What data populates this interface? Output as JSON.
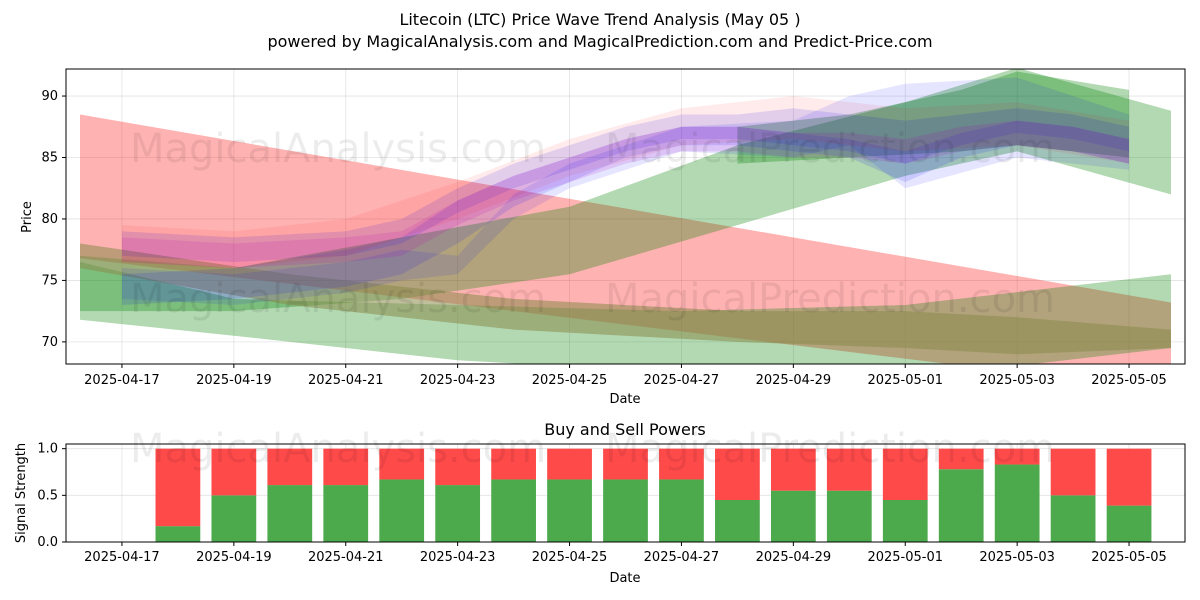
{
  "title": "Litecoin (LTC) Price Wave Trend Analysis (May 05 )",
  "subtitle": "powered by MagicalAnalysis.com and MagicalPrediction.com and Predict-Price.com",
  "watermarks": [
    "MagicalAnalysis.com",
    "MagicalPrediction.com"
  ],
  "colors": {
    "red": "#ff0000",
    "green": "#008000",
    "blue": "#0000ff",
    "magenta": "#c000c0",
    "buy": "#4caa4c",
    "sell": "#ff4a4a"
  },
  "chart_data": [
    {
      "type": "area",
      "name": "price-wave",
      "xlabel": "Date",
      "ylabel": "Price",
      "ylim": [
        68.2,
        92.2
      ],
      "xlim": [
        "2025-04-16",
        "2025-05-06"
      ],
      "xticks": [
        "2025-04-17",
        "2025-04-19",
        "2025-04-21",
        "2025-04-23",
        "2025-04-25",
        "2025-04-27",
        "2025-04-29",
        "2025-05-01",
        "2025-05-03",
        "2025-05-05"
      ],
      "yticks": [
        70,
        75,
        80,
        85,
        90
      ],
      "grid": true,
      "bands": [
        {
          "color": "red",
          "opacity": 0.3,
          "x": [
            "2025-04-16 06:00",
            "2025-05-05 18:00"
          ],
          "upper": [
            88.5,
            73.2
          ],
          "lower": [
            76.8,
            66.0
          ]
        },
        {
          "color": "green",
          "opacity": 0.3,
          "x": [
            "2025-04-16 06:00",
            "2025-04-19",
            "2025-04-22",
            "2025-04-25",
            "2025-04-28",
            "2025-05-01",
            "2025-05-03",
            "2025-05-05 18:00"
          ],
          "upper": [
            77.0,
            76.0,
            78.5,
            81.0,
            86.0,
            89.5,
            92.3,
            88.8
          ],
          "lower": [
            72.5,
            72.5,
            73.5,
            75.5,
            79.5,
            83.5,
            85.5,
            82.0
          ]
        },
        {
          "color": "green",
          "opacity": 0.3,
          "x": [
            "2025-04-16 06:00",
            "2025-04-19",
            "2025-04-23",
            "2025-04-27",
            "2025-05-01",
            "2025-05-05 18:00"
          ],
          "upper": [
            76.5,
            73.5,
            73.0,
            72.5,
            73.0,
            75.5
          ],
          "lower": [
            71.8,
            70.5,
            68.5,
            67.5,
            67.0,
            69.5
          ]
        },
        {
          "color": "olive",
          "opacity": 0.55,
          "x": [
            "2025-04-16 06:00",
            "2025-04-20",
            "2025-04-24",
            "2025-04-28",
            "2025-05-01",
            "2025-05-03",
            "2025-05-05 18:00"
          ],
          "upper": [
            78.0,
            75.5,
            73.5,
            72.5,
            72.5,
            72.0,
            71.0
          ],
          "lower": [
            76.0,
            73.0,
            71.0,
            70.0,
            69.5,
            69.0,
            69.5
          ]
        },
        {
          "color": "green",
          "opacity": 0.3,
          "x": [
            "2025-04-28",
            "2025-04-30",
            "2025-05-02",
            "2025-05-03",
            "2025-05-05"
          ],
          "upper": [
            87.5,
            88.5,
            90.5,
            92.0,
            90.5
          ],
          "lower": [
            84.5,
            85.0,
            85.5,
            86.0,
            85.0
          ]
        }
      ],
      "waves": [
        {
          "color": "blue",
          "opacity": 0.12,
          "x": [
            "2025-04-17",
            "2025-04-19",
            "2025-04-21",
            "2025-04-22",
            "2025-04-23",
            "2025-04-24",
            "2025-04-25",
            "2025-04-26",
            "2025-04-27",
            "2025-04-28",
            "2025-04-29",
            "2025-04-30",
            "2025-05-01",
            "2025-05-02",
            "2025-05-03",
            "2025-05-04",
            "2025-05-05"
          ],
          "upper": [
            75.5,
            76.0,
            77.5,
            78.5,
            81.5,
            83.5,
            85.0,
            86.5,
            87.5,
            87.5,
            87.0,
            86.5,
            85.5,
            87.0,
            88.0,
            87.5,
            86.5
          ],
          "lower": [
            73.0,
            73.5,
            74.5,
            75.5,
            78.0,
            81.0,
            83.0,
            85.0,
            86.0,
            86.0,
            85.5,
            85.0,
            83.0,
            85.0,
            86.0,
            85.5,
            84.5
          ]
        },
        {
          "color": "blue",
          "opacity": 0.12,
          "x": [
            "2025-04-17",
            "2025-04-19",
            "2025-04-21",
            "2025-04-22",
            "2025-04-23",
            "2025-04-24",
            "2025-04-25",
            "2025-04-26",
            "2025-04-27",
            "2025-04-28",
            "2025-04-29",
            "2025-04-30",
            "2025-05-01",
            "2025-05-02",
            "2025-05-03",
            "2025-05-04",
            "2025-05-05"
          ],
          "upper": [
            79.0,
            78.5,
            79.0,
            80.0,
            82.5,
            84.5,
            86.0,
            87.5,
            88.5,
            88.5,
            89.0,
            88.5,
            88.0,
            88.5,
            89.0,
            88.5,
            87.5
          ],
          "lower": [
            77.0,
            76.5,
            77.0,
            78.0,
            80.5,
            82.5,
            84.0,
            85.5,
            86.5,
            86.5,
            86.0,
            85.5,
            84.5,
            86.0,
            87.0,
            86.5,
            85.5
          ]
        },
        {
          "color": "magenta",
          "opacity": 0.14,
          "x": [
            "2025-04-17",
            "2025-04-19",
            "2025-04-21",
            "2025-04-22",
            "2025-04-23",
            "2025-04-24",
            "2025-04-25",
            "2025-04-26",
            "2025-04-27",
            "2025-04-28",
            "2025-04-29",
            "2025-04-30",
            "2025-05-01",
            "2025-05-02",
            "2025-05-03",
            "2025-05-04",
            "2025-05-05"
          ],
          "upper": [
            78.5,
            78.0,
            78.5,
            79.0,
            81.5,
            83.5,
            85.0,
            86.5,
            87.5,
            87.5,
            87.0,
            87.0,
            86.5,
            87.5,
            88.0,
            87.5,
            86.5
          ],
          "lower": [
            76.5,
            76.0,
            76.5,
            77.0,
            79.5,
            81.5,
            83.0,
            84.5,
            85.5,
            85.5,
            85.0,
            85.0,
            84.5,
            85.5,
            86.0,
            85.5,
            84.5
          ]
        },
        {
          "color": "red",
          "opacity": 0.08,
          "x": [
            "2025-04-17",
            "2025-04-19",
            "2025-04-21",
            "2025-04-23",
            "2025-04-25",
            "2025-04-27",
            "2025-04-29",
            "2025-05-01",
            "2025-05-03",
            "2025-05-05"
          ],
          "upper": [
            79.5,
            79.0,
            80.0,
            83.0,
            86.5,
            89.0,
            90.0,
            89.0,
            89.5,
            88.0
          ],
          "lower": [
            76.5,
            76.0,
            77.0,
            80.0,
            83.5,
            86.0,
            86.5,
            85.5,
            86.0,
            84.5
          ]
        },
        {
          "color": "blue",
          "opacity": 0.1,
          "x": [
            "2025-04-17",
            "2025-04-19",
            "2025-04-21",
            "2025-04-22",
            "2025-04-23",
            "2025-04-24",
            "2025-04-25",
            "2025-04-27",
            "2025-04-29",
            "2025-04-30",
            "2025-05-01",
            "2025-05-03",
            "2025-05-05"
          ],
          "upper": [
            76.0,
            75.5,
            76.5,
            77.5,
            77.0,
            82.0,
            84.5,
            87.5,
            88.0,
            90.0,
            91.0,
            91.5,
            88.5
          ],
          "lower": [
            73.5,
            73.0,
            74.0,
            75.0,
            75.5,
            80.0,
            82.5,
            85.5,
            85.0,
            86.0,
            82.5,
            85.0,
            84.0
          ]
        }
      ]
    },
    {
      "type": "bar",
      "name": "buy-sell-powers",
      "title": "Buy and Sell Powers",
      "xlabel": "Date",
      "ylabel": "Signal Strength",
      "ylim": [
        0,
        1.05
      ],
      "yticks": [
        "0.0",
        "0.5",
        "1.0"
      ],
      "xticks": [
        "2025-04-17",
        "2025-04-19",
        "2025-04-21",
        "2025-04-23",
        "2025-04-25",
        "2025-04-27",
        "2025-04-29",
        "2025-05-01",
        "2025-05-03",
        "2025-05-05"
      ],
      "dates": [
        "2025-04-18",
        "2025-04-19",
        "2025-04-20",
        "2025-04-21",
        "2025-04-22",
        "2025-04-23",
        "2025-04-24",
        "2025-04-25",
        "2025-04-26",
        "2025-04-27",
        "2025-04-28",
        "2025-04-29",
        "2025-04-30",
        "2025-05-01",
        "2025-05-02",
        "2025-05-03",
        "2025-05-04",
        "2025-05-05"
      ],
      "buy": [
        0.17,
        0.5,
        0.61,
        0.61,
        0.67,
        0.61,
        0.67,
        0.67,
        0.67,
        0.67,
        0.45,
        0.55,
        0.55,
        0.45,
        0.78,
        0.83,
        0.5,
        0.39
      ],
      "sell": [
        0.83,
        0.5,
        0.39,
        0.39,
        0.33,
        0.39,
        0.33,
        0.33,
        0.33,
        0.33,
        0.55,
        0.45,
        0.45,
        0.55,
        0.22,
        0.17,
        0.5,
        0.61
      ]
    }
  ]
}
